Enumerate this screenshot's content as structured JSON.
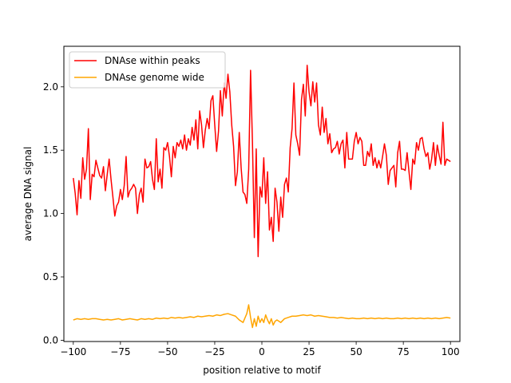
{
  "chart_data": {
    "type": "line",
    "title": "",
    "xlabel": "position relative to motif",
    "ylabel": "average DNA signal",
    "xlim": [
      -105,
      105
    ],
    "ylim": [
      -0.01,
      2.32
    ],
    "xticks": [
      -100,
      -75,
      -50,
      -25,
      0,
      25,
      50,
      75,
      100
    ],
    "yticks": [
      0.0,
      0.5,
      1.0,
      1.5,
      2.0
    ],
    "xtick_labels": [
      "−100",
      "−75",
      "−50",
      "−25",
      "0",
      "25",
      "50",
      "75",
      "100"
    ],
    "ytick_labels": [
      "0.0",
      "0.5",
      "1.0",
      "1.5",
      "2.0"
    ],
    "grid": false,
    "legend_position": "top-left",
    "series": [
      {
        "name": "DNAse within peaks",
        "color": "#ff0000",
        "points": [
          [
            -100,
            1.28
          ],
          [
            -99,
            1.16
          ],
          [
            -98,
            0.99
          ],
          [
            -97,
            1.26
          ],
          [
            -96,
            1.12
          ],
          [
            -95,
            1.44
          ],
          [
            -94,
            1.27
          ],
          [
            -93,
            1.35
          ],
          [
            -92,
            1.67
          ],
          [
            -91,
            1.11
          ],
          [
            -90,
            1.31
          ],
          [
            -89,
            1.29
          ],
          [
            -88,
            1.42
          ],
          [
            -87,
            1.36
          ],
          [
            -86,
            1.3
          ],
          [
            -85,
            1.28
          ],
          [
            -84,
            1.37
          ],
          [
            -83,
            1.18
          ],
          [
            -82,
            1.31
          ],
          [
            -81,
            1.43
          ],
          [
            -80,
            1.27
          ],
          [
            -79,
            1.13
          ],
          [
            -78,
            0.98
          ],
          [
            -77,
            1.06
          ],
          [
            -76,
            1.09
          ],
          [
            -75,
            1.19
          ],
          [
            -74,
            1.11
          ],
          [
            -73,
            1.22
          ],
          [
            -72,
            1.45
          ],
          [
            -71,
            1.13
          ],
          [
            -70,
            1.18
          ],
          [
            -69,
            1.2
          ],
          [
            -68,
            1.23
          ],
          [
            -67,
            1.2
          ],
          [
            -66,
            1.0
          ],
          [
            -65,
            1.15
          ],
          [
            -64,
            1.2
          ],
          [
            -63,
            1.09
          ],
          [
            -62,
            1.43
          ],
          [
            -61,
            1.36
          ],
          [
            -60,
            1.37
          ],
          [
            -59,
            1.41
          ],
          [
            -58,
            1.27
          ],
          [
            -57,
            1.19
          ],
          [
            -56,
            1.59
          ],
          [
            -55,
            1.25
          ],
          [
            -54,
            1.35
          ],
          [
            -53,
            1.2
          ],
          [
            -52,
            1.52
          ],
          [
            -51,
            1.5
          ],
          [
            -50,
            1.56
          ],
          [
            -49,
            1.45
          ],
          [
            -48,
            1.29
          ],
          [
            -47,
            1.53
          ],
          [
            -46,
            1.44
          ],
          [
            -45,
            1.56
          ],
          [
            -44,
            1.53
          ],
          [
            -43,
            1.58
          ],
          [
            -42,
            1.51
          ],
          [
            -41,
            1.62
          ],
          [
            -40,
            1.5
          ],
          [
            -39,
            1.59
          ],
          [
            -38,
            1.54
          ],
          [
            -37,
            1.68
          ],
          [
            -36,
            1.58
          ],
          [
            -35,
            1.74
          ],
          [
            -34,
            1.51
          ],
          [
            -33,
            1.81
          ],
          [
            -32,
            1.7
          ],
          [
            -31,
            1.52
          ],
          [
            -30,
            1.66
          ],
          [
            -29,
            1.75
          ],
          [
            -28,
            1.67
          ],
          [
            -27,
            1.89
          ],
          [
            -26,
            1.93
          ],
          [
            -25,
            1.7
          ],
          [
            -24,
            1.49
          ],
          [
            -23,
            1.65
          ],
          [
            -22,
            1.97
          ],
          [
            -21,
            1.77
          ],
          [
            -20,
            2.03
          ],
          [
            -19,
            1.91
          ],
          [
            -18,
            2.1
          ],
          [
            -17,
            1.96
          ],
          [
            -16,
            1.7
          ],
          [
            -15,
            1.53
          ],
          [
            -14,
            1.22
          ],
          [
            -13,
            1.33
          ],
          [
            -12,
            1.64
          ],
          [
            -11,
            1.36
          ],
          [
            -10,
            1.17
          ],
          [
            -9,
            1.15
          ],
          [
            -8,
            1.08
          ],
          [
            -7,
            1.35
          ],
          [
            -6,
            2.13
          ],
          [
            -5,
            1.56
          ],
          [
            -4,
            0.81
          ],
          [
            -3,
            1.51
          ],
          [
            -2,
            0.66
          ],
          [
            -1,
            1.21
          ],
          [
            0,
            1.13
          ],
          [
            1,
            1.44
          ],
          [
            2,
            1.08
          ],
          [
            3,
            1.33
          ],
          [
            4,
            0.87
          ],
          [
            5,
            0.97
          ],
          [
            6,
            0.78
          ],
          [
            7,
            1.2
          ],
          [
            8,
            1.09
          ],
          [
            9,
            0.86
          ],
          [
            10,
            1.13
          ],
          [
            11,
            0.97
          ],
          [
            12,
            1.23
          ],
          [
            13,
            1.28
          ],
          [
            14,
            1.17
          ],
          [
            15,
            1.52
          ],
          [
            16,
            1.67
          ],
          [
            17,
            2.03
          ],
          [
            18,
            1.62
          ],
          [
            19,
            1.55
          ],
          [
            20,
            1.46
          ],
          [
            21,
            1.9
          ],
          [
            22,
            2.02
          ],
          [
            23,
            1.77
          ],
          [
            24,
            2.17
          ],
          [
            25,
            1.96
          ],
          [
            26,
            1.85
          ],
          [
            27,
            2.04
          ],
          [
            28,
            1.88
          ],
          [
            29,
            2.03
          ],
          [
            30,
            1.7
          ],
          [
            31,
            1.62
          ],
          [
            32,
            1.84
          ],
          [
            33,
            1.64
          ],
          [
            34,
            1.75
          ],
          [
            35,
            1.55
          ],
          [
            36,
            1.63
          ],
          [
            37,
            1.48
          ],
          [
            38,
            1.51
          ],
          [
            39,
            1.52
          ],
          [
            40,
            1.57
          ],
          [
            41,
            1.47
          ],
          [
            42,
            1.55
          ],
          [
            43,
            1.58
          ],
          [
            44,
            1.36
          ],
          [
            45,
            1.64
          ],
          [
            46,
            1.43
          ],
          [
            47,
            1.43
          ],
          [
            48,
            1.43
          ],
          [
            49,
            1.57
          ],
          [
            50,
            1.64
          ],
          [
            51,
            1.55
          ],
          [
            52,
            1.6
          ],
          [
            53,
            1.57
          ],
          [
            54,
            1.38
          ],
          [
            55,
            1.38
          ],
          [
            56,
            1.49
          ],
          [
            57,
            1.45
          ],
          [
            58,
            1.55
          ],
          [
            59,
            1.38
          ],
          [
            60,
            1.44
          ],
          [
            61,
            1.36
          ],
          [
            62,
            1.42
          ],
          [
            63,
            1.36
          ],
          [
            64,
            1.45
          ],
          [
            65,
            1.55
          ],
          [
            66,
            1.46
          ],
          [
            67,
            1.23
          ],
          [
            68,
            1.34
          ],
          [
            69,
            1.36
          ],
          [
            70,
            1.38
          ],
          [
            71,
            1.21
          ],
          [
            72,
            1.48
          ],
          [
            73,
            1.57
          ],
          [
            74,
            1.35
          ],
          [
            75,
            1.35
          ],
          [
            76,
            1.34
          ],
          [
            77,
            1.48
          ],
          [
            78,
            1.33
          ],
          [
            79,
            1.19
          ],
          [
            80,
            1.43
          ],
          [
            81,
            1.39
          ],
          [
            82,
            1.56
          ],
          [
            83,
            1.5
          ],
          [
            84,
            1.59
          ],
          [
            85,
            1.6
          ],
          [
            86,
            1.51
          ],
          [
            87,
            1.45
          ],
          [
            88,
            1.48
          ],
          [
            89,
            1.35
          ],
          [
            90,
            1.43
          ],
          [
            91,
            1.56
          ],
          [
            92,
            1.38
          ],
          [
            93,
            1.54
          ],
          [
            94,
            1.46
          ],
          [
            95,
            1.39
          ],
          [
            96,
            1.72
          ],
          [
            97,
            1.38
          ],
          [
            98,
            1.43
          ],
          [
            99,
            1.42
          ],
          [
            100,
            1.41
          ]
        ]
      },
      {
        "name": "DNAse genome wide",
        "color": "#ffa500",
        "points": [
          [
            -100,
            0.16
          ],
          [
            -98,
            0.17
          ],
          [
            -96,
            0.165
          ],
          [
            -94,
            0.17
          ],
          [
            -92,
            0.165
          ],
          [
            -90,
            0.17
          ],
          [
            -88,
            0.17
          ],
          [
            -86,
            0.165
          ],
          [
            -84,
            0.16
          ],
          [
            -82,
            0.165
          ],
          [
            -80,
            0.16
          ],
          [
            -78,
            0.165
          ],
          [
            -76,
            0.17
          ],
          [
            -74,
            0.16
          ],
          [
            -72,
            0.165
          ],
          [
            -70,
            0.17
          ],
          [
            -68,
            0.165
          ],
          [
            -66,
            0.16
          ],
          [
            -64,
            0.17
          ],
          [
            -62,
            0.165
          ],
          [
            -60,
            0.17
          ],
          [
            -58,
            0.165
          ],
          [
            -56,
            0.175
          ],
          [
            -54,
            0.17
          ],
          [
            -52,
            0.175
          ],
          [
            -50,
            0.17
          ],
          [
            -48,
            0.18
          ],
          [
            -46,
            0.175
          ],
          [
            -44,
            0.18
          ],
          [
            -42,
            0.175
          ],
          [
            -40,
            0.18
          ],
          [
            -38,
            0.185
          ],
          [
            -36,
            0.18
          ],
          [
            -34,
            0.19
          ],
          [
            -32,
            0.185
          ],
          [
            -30,
            0.19
          ],
          [
            -28,
            0.195
          ],
          [
            -26,
            0.19
          ],
          [
            -24,
            0.2
          ],
          [
            -22,
            0.195
          ],
          [
            -20,
            0.205
          ],
          [
            -18,
            0.21
          ],
          [
            -16,
            0.2
          ],
          [
            -14,
            0.19
          ],
          [
            -12,
            0.16
          ],
          [
            -10,
            0.14
          ],
          [
            -8,
            0.21
          ],
          [
            -7,
            0.28
          ],
          [
            -6,
            0.18
          ],
          [
            -5,
            0.1
          ],
          [
            -4,
            0.17
          ],
          [
            -3,
            0.11
          ],
          [
            -2,
            0.19
          ],
          [
            -1,
            0.14
          ],
          [
            0,
            0.17
          ],
          [
            1,
            0.14
          ],
          [
            2,
            0.2
          ],
          [
            3,
            0.16
          ],
          [
            4,
            0.13
          ],
          [
            5,
            0.17
          ],
          [
            6,
            0.12
          ],
          [
            7,
            0.15
          ],
          [
            8,
            0.16
          ],
          [
            10,
            0.14
          ],
          [
            12,
            0.17
          ],
          [
            14,
            0.18
          ],
          [
            16,
            0.19
          ],
          [
            18,
            0.19
          ],
          [
            20,
            0.195
          ],
          [
            22,
            0.2
          ],
          [
            24,
            0.195
          ],
          [
            26,
            0.2
          ],
          [
            28,
            0.19
          ],
          [
            30,
            0.195
          ],
          [
            32,
            0.19
          ],
          [
            34,
            0.185
          ],
          [
            36,
            0.18
          ],
          [
            38,
            0.18
          ],
          [
            40,
            0.175
          ],
          [
            42,
            0.18
          ],
          [
            44,
            0.175
          ],
          [
            46,
            0.17
          ],
          [
            48,
            0.175
          ],
          [
            50,
            0.17
          ],
          [
            52,
            0.17
          ],
          [
            54,
            0.175
          ],
          [
            56,
            0.17
          ],
          [
            58,
            0.175
          ],
          [
            60,
            0.17
          ],
          [
            62,
            0.175
          ],
          [
            64,
            0.17
          ],
          [
            66,
            0.175
          ],
          [
            68,
            0.17
          ],
          [
            70,
            0.17
          ],
          [
            72,
            0.175
          ],
          [
            74,
            0.17
          ],
          [
            76,
            0.175
          ],
          [
            78,
            0.17
          ],
          [
            80,
            0.175
          ],
          [
            82,
            0.17
          ],
          [
            84,
            0.175
          ],
          [
            86,
            0.17
          ],
          [
            88,
            0.175
          ],
          [
            90,
            0.17
          ],
          [
            92,
            0.175
          ],
          [
            94,
            0.17
          ],
          [
            96,
            0.175
          ],
          [
            98,
            0.18
          ],
          [
            100,
            0.175
          ]
        ]
      }
    ]
  }
}
